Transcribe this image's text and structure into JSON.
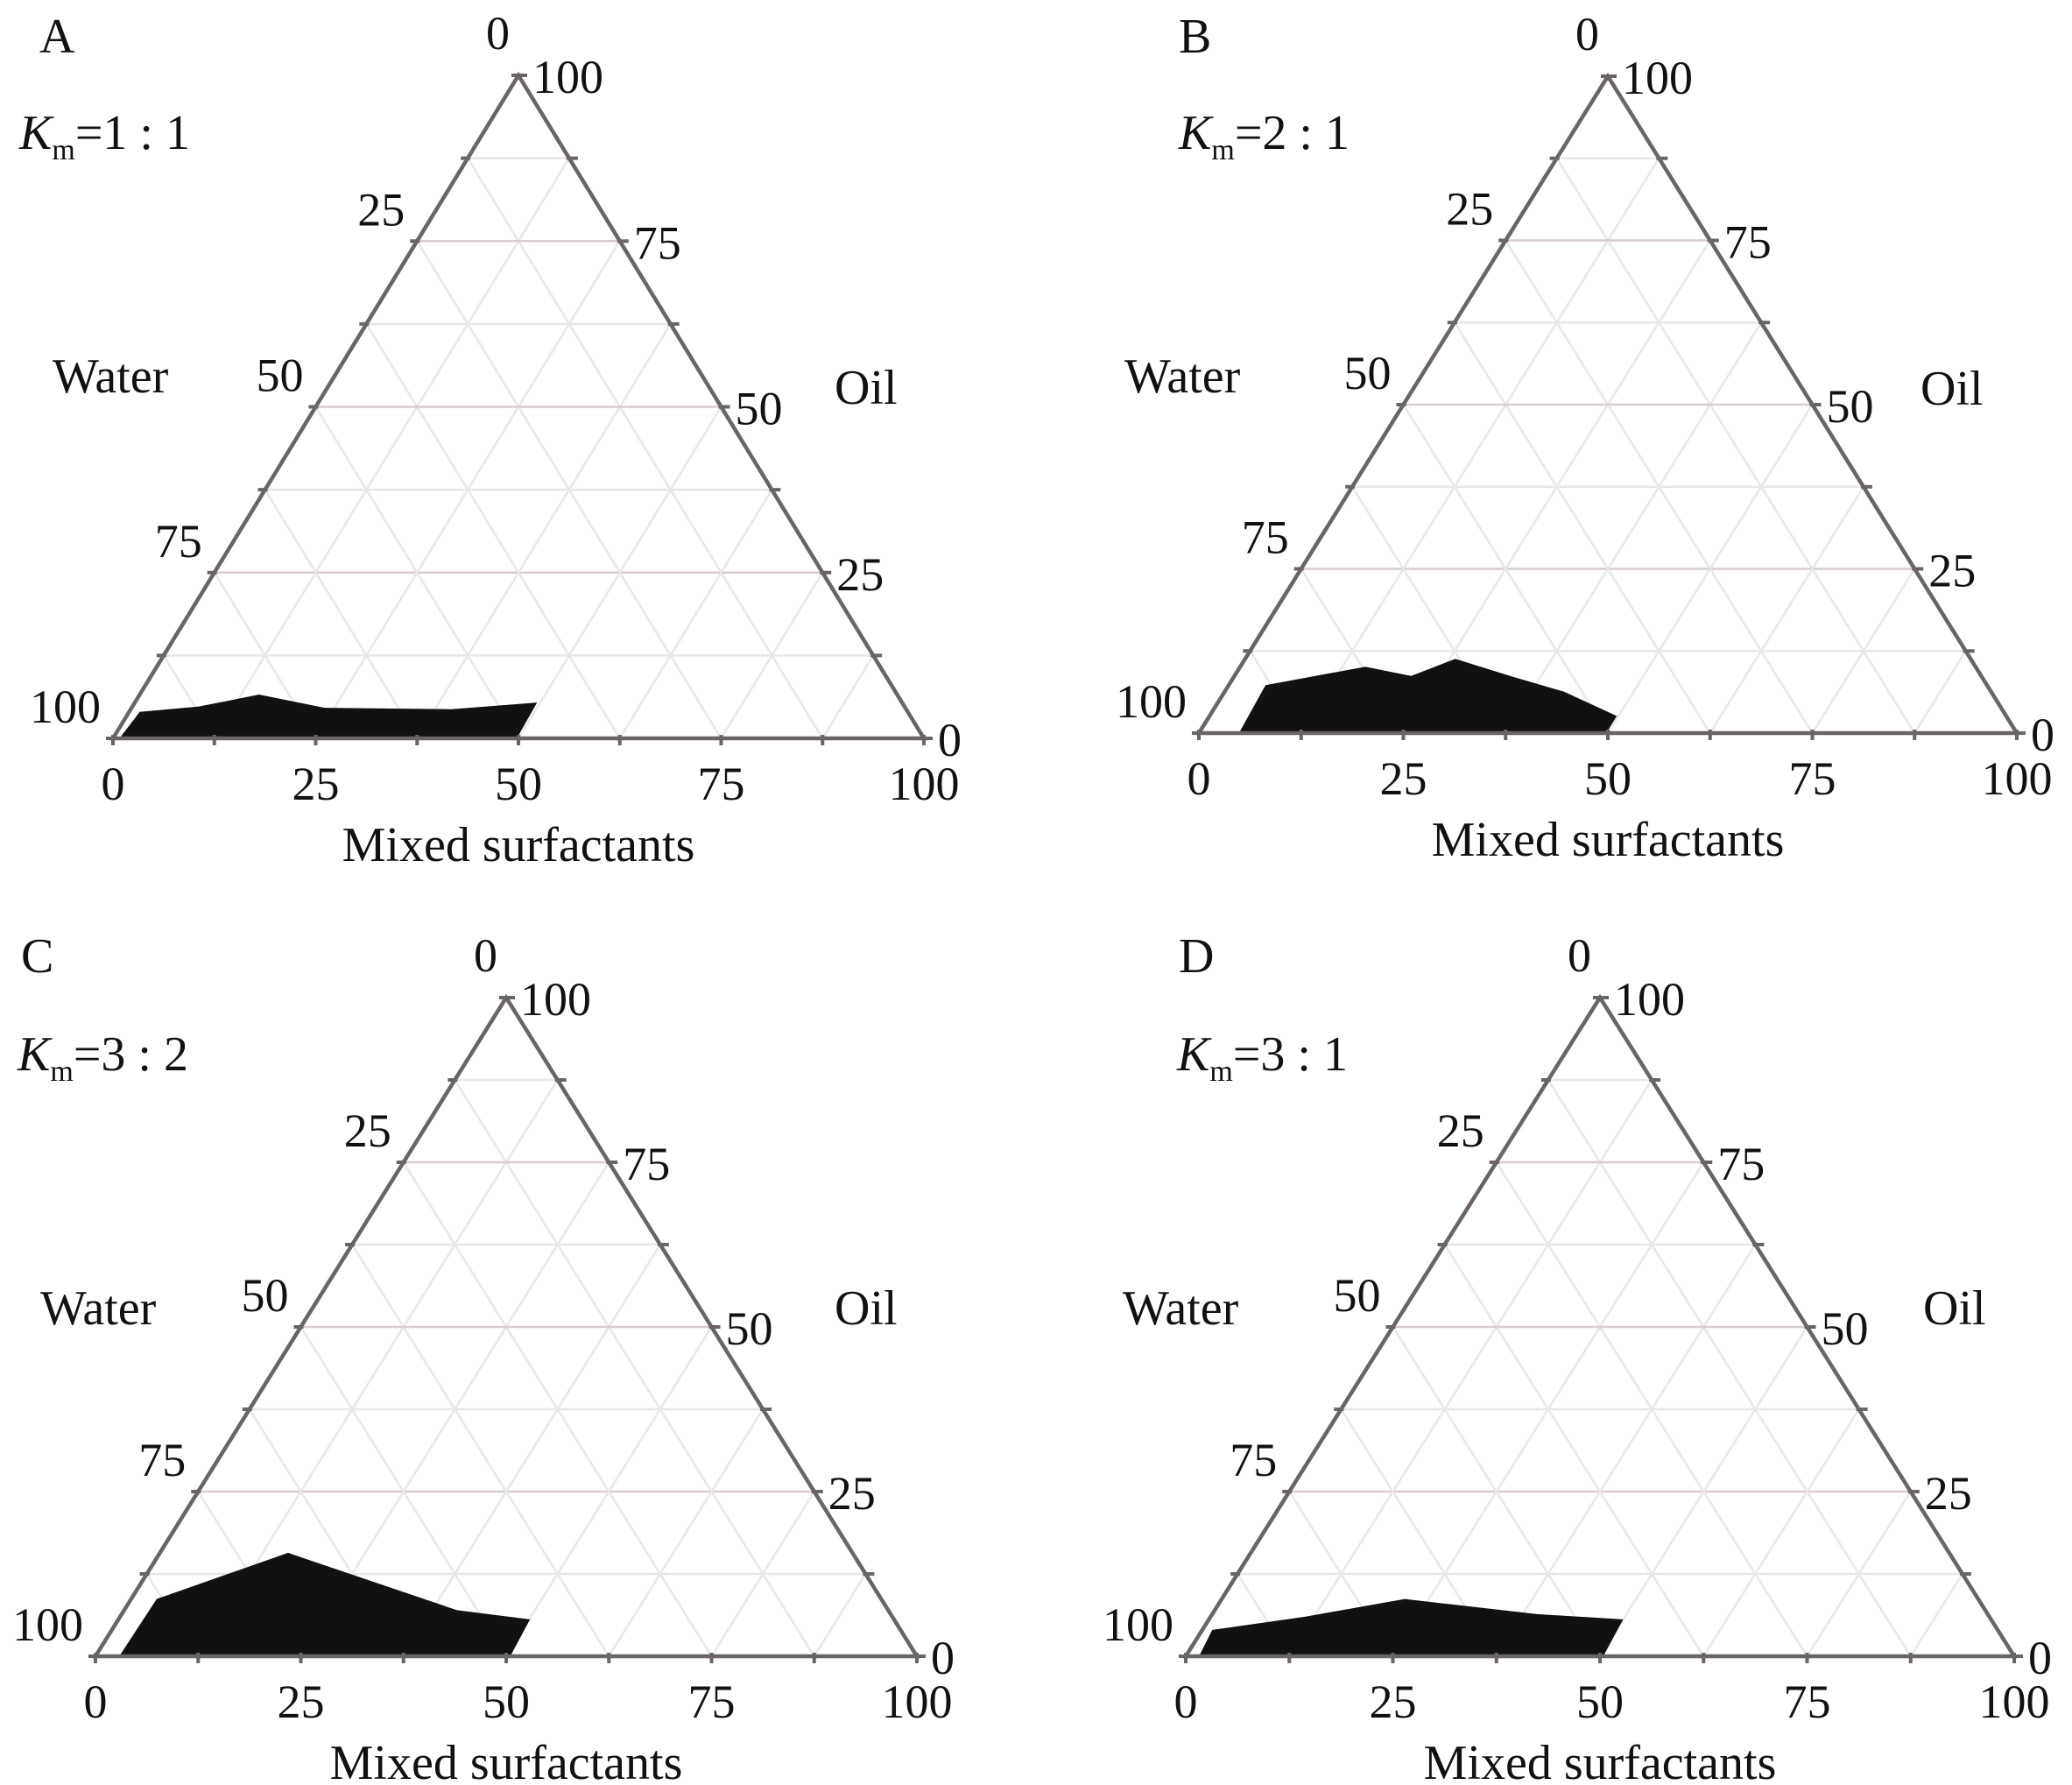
{
  "chart_data": [
    {
      "type": "ternary",
      "panel": "A",
      "annotation": {
        "symbol": "K",
        "sub": "m",
        "ratio": "=1 : 1"
      },
      "axes": {
        "left": "Water",
        "right": "Oil",
        "bottom": "Mixed surfactants"
      },
      "ticks": [
        "0",
        "25",
        "50",
        "75",
        "100"
      ],
      "grid_step": 12.5,
      "region_surfactant_oil": [
        [
          0.8,
          0
        ],
        [
          1.3,
          4
        ],
        [
          8.2,
          4.8
        ],
        [
          14.7,
          6.6
        ],
        [
          23.8,
          4.6
        ],
        [
          39.5,
          4.4
        ],
        [
          49.6,
          5.4
        ],
        [
          49.8,
          0
        ]
      ]
    },
    {
      "type": "ternary",
      "panel": "B",
      "annotation": {
        "symbol": "K",
        "sub": "m",
        "ratio": "=2 : 1"
      },
      "axes": {
        "left": "Water",
        "right": "Oil",
        "bottom": "Mixed surfactants"
      },
      "ticks": [
        "0",
        "25",
        "50",
        "75",
        "100"
      ],
      "grid_step": 12.5,
      "region_surfactant_oil": [
        [
          4.9,
          0
        ],
        [
          4.5,
          7.3
        ],
        [
          15.3,
          10.1
        ],
        [
          21.6,
          8.7
        ],
        [
          25.7,
          11.3
        ],
        [
          33.7,
          8.7
        ],
        [
          41.5,
          6.3
        ],
        [
          49.8,
          2.6
        ],
        [
          49.8,
          0
        ]
      ]
    },
    {
      "type": "ternary",
      "panel": "C",
      "annotation": {
        "symbol": "K",
        "sub": "m",
        "ratio": "=3 : 2"
      },
      "axes": {
        "left": "Water",
        "right": "Oil",
        "bottom": "Mixed surfactants"
      },
      "ticks": [
        "0",
        "25",
        "50",
        "75",
        "100"
      ],
      "grid_step": 12.5,
      "region_surfactant_oil": [
        [
          2.9,
          0
        ],
        [
          3.1,
          8.7
        ],
        [
          15.6,
          15.7
        ],
        [
          25.9,
          12.1
        ],
        [
          40.5,
          7
        ],
        [
          50.1,
          5.6
        ],
        [
          50.5,
          0
        ]
      ]
    },
    {
      "type": "ternary",
      "panel": "D",
      "annotation": {
        "symbol": "K",
        "sub": "m",
        "ratio": "=3 : 1"
      },
      "axes": {
        "left": "Water",
        "right": "Oil",
        "bottom": "Mixed surfactants"
      },
      "ticks": [
        "0",
        "25",
        "50",
        "75",
        "100"
      ],
      "grid_step": 12.5,
      "region_surfactant_oil": [
        [
          1.6,
          0
        ],
        [
          1.2,
          4
        ],
        [
          11.4,
          6
        ],
        [
          22.1,
          8.7
        ],
        [
          27.2,
          8
        ],
        [
          39.2,
          6.4
        ],
        [
          50,
          5.6
        ],
        [
          50.4,
          0
        ]
      ]
    }
  ],
  "colors": {
    "edge": "#6a6464",
    "grid_major": "#d9cccc",
    "grid_minor": "#e8e8e8",
    "region": "#111111"
  }
}
